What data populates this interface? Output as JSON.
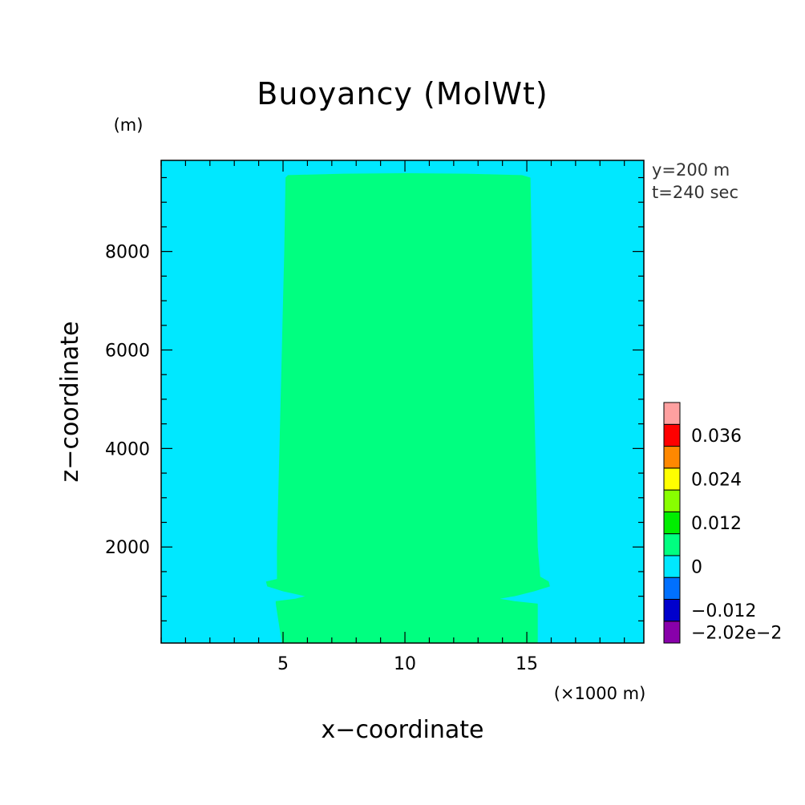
{
  "chart_data": {
    "type": "heatmap",
    "title": "Buoyancy (MolWt)",
    "xlabel": "x−coordinate",
    "ylabel": "z−coordinate",
    "x_unit": "(×1000 m)",
    "y_unit": "(m)",
    "annotations": [
      "y=200 m",
      "t=240 sec"
    ],
    "xlim": [
      0,
      19.8
    ],
    "ylim": [
      50,
      9850
    ],
    "x_ticks": [
      {
        "value": 5,
        "label": "5"
      },
      {
        "value": 10,
        "label": "10"
      },
      {
        "value": 15,
        "label": "15"
      }
    ],
    "y_ticks": [
      {
        "value": 2000,
        "label": "2000"
      },
      {
        "value": 4000,
        "label": "4000"
      },
      {
        "value": 6000,
        "label": "6000"
      },
      {
        "value": 8000,
        "label": "8000"
      }
    ],
    "x_minor_step": 1,
    "y_minor_step": 500,
    "background_color": "#00e8ff",
    "background_range": "-0.006 to 0",
    "regions": [
      {
        "range": "0 to 0.006",
        "color": "#00ff80",
        "outline": [
          [
            4.95,
            50
          ],
          [
            15.45,
            50
          ],
          [
            15.45,
            850
          ],
          [
            14.5,
            900
          ],
          [
            13.9,
            950
          ],
          [
            14.5,
            1000
          ],
          [
            15.3,
            1100
          ],
          [
            15.95,
            1200
          ],
          [
            15.9,
            1300
          ],
          [
            15.55,
            1400
          ],
          [
            15.45,
            2000
          ],
          [
            15.35,
            4000
          ],
          [
            15.25,
            6000
          ],
          [
            15.2,
            8000
          ],
          [
            15.15,
            9500
          ],
          [
            14.8,
            9550
          ],
          [
            12.5,
            9580
          ],
          [
            10.0,
            9590
          ],
          [
            7.5,
            9580
          ],
          [
            5.2,
            9550
          ],
          [
            5.1,
            9500
          ],
          [
            5.05,
            8000
          ],
          [
            4.95,
            6000
          ],
          [
            4.85,
            4000
          ],
          [
            4.75,
            2000
          ],
          [
            4.75,
            1350
          ],
          [
            4.3,
            1300
          ],
          [
            4.35,
            1200
          ],
          [
            5.0,
            1100
          ],
          [
            5.9,
            1000
          ],
          [
            5.5,
            950
          ],
          [
            4.7,
            900
          ],
          [
            4.7,
            850
          ]
        ]
      }
    ],
    "colorbar": {
      "colors": [
        "#8800aa",
        "#0000cc",
        "#0070ff",
        "#00e8ff",
        "#00ff80",
        "#00ee00",
        "#88ff00",
        "#ffff00",
        "#ff8800",
        "#ff0000",
        "#ffa0a0"
      ],
      "labels": [
        {
          "index": 0,
          "label": "−2.02e−2"
        },
        {
          "index": 1,
          "label": "−0.012"
        },
        {
          "index": 3,
          "label": "0"
        },
        {
          "index": 5,
          "label": "0.012"
        },
        {
          "index": 7,
          "label": "0.024"
        },
        {
          "index": 9,
          "label": "0.036"
        }
      ]
    }
  }
}
